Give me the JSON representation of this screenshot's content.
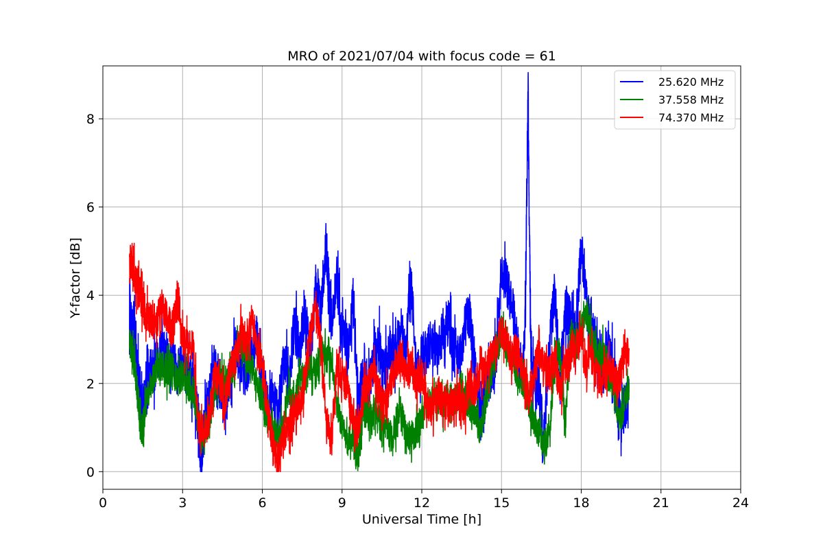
{
  "chart_data": {
    "type": "line",
    "title": "MRO of 2021/07/04 with focus code = 61",
    "xlabel": "Universal Time [h]",
    "ylabel": "Y-factor [dB]",
    "xlim": [
      0,
      24
    ],
    "ylim": [
      -0.4,
      9.2
    ],
    "xticks": [
      0,
      3,
      6,
      9,
      12,
      15,
      18,
      21,
      24
    ],
    "yticks": [
      0,
      2,
      4,
      6,
      8
    ],
    "grid": true,
    "legend_position": "top-right",
    "series": [
      {
        "name": "25.620 MHz",
        "color": "#0000ff",
        "x": [
          1.0,
          1.1,
          1.2,
          1.3,
          1.4,
          1.5,
          1.6,
          1.8,
          2.0,
          2.2,
          2.4,
          2.6,
          2.8,
          3.0,
          3.2,
          3.4,
          3.6,
          3.7,
          3.8,
          4.0,
          4.2,
          4.4,
          4.6,
          4.8,
          5.0,
          5.2,
          5.4,
          5.6,
          5.8,
          6.0,
          6.2,
          6.4,
          6.6,
          6.8,
          7.0,
          7.2,
          7.4,
          7.6,
          7.8,
          8.0,
          8.2,
          8.4,
          8.5,
          8.6,
          8.8,
          9.0,
          9.2,
          9.4,
          9.6,
          9.8,
          10.0,
          10.2,
          10.4,
          10.6,
          10.8,
          11.0,
          11.2,
          11.4,
          11.6,
          11.8,
          12.0,
          12.2,
          12.4,
          12.6,
          12.8,
          13.0,
          13.2,
          13.4,
          13.6,
          13.8,
          14.0,
          14.2,
          14.4,
          14.6,
          14.8,
          15.0,
          15.2,
          15.4,
          15.6,
          15.8,
          15.9,
          16.0,
          16.1,
          16.2,
          16.4,
          16.6,
          16.8,
          17.0,
          17.2,
          17.4,
          17.6,
          17.8,
          18.0,
          18.2,
          18.4,
          18.6,
          18.8,
          19.0,
          19.2,
          19.4,
          19.6,
          19.8
        ],
        "y": [
          3.6,
          3.2,
          3.0,
          2.4,
          1.6,
          1.3,
          1.8,
          2.2,
          2.4,
          2.8,
          2.5,
          2.6,
          2.3,
          2.5,
          2.2,
          2.0,
          1.2,
          0.05,
          1.0,
          1.6,
          2.4,
          1.8,
          1.5,
          2.3,
          2.8,
          2.4,
          2.2,
          2.6,
          3.0,
          2.2,
          1.6,
          1.8,
          1.2,
          2.6,
          2.0,
          3.4,
          2.8,
          3.6,
          2.6,
          4.2,
          3.6,
          5.2,
          4.2,
          3.4,
          4.4,
          3.2,
          2.6,
          3.8,
          1.6,
          2.2,
          1.9,
          2.6,
          2.8,
          2.2,
          2.8,
          2.6,
          3.2,
          2.8,
          4.4,
          2.2,
          2.6,
          2.8,
          3.0,
          2.6,
          3.2,
          3.4,
          2.8,
          2.5,
          3.2,
          3.6,
          2.4,
          1.2,
          1.8,
          2.2,
          2.6,
          4.6,
          4.2,
          3.8,
          2.8,
          2.2,
          3.6,
          8.7,
          2.8,
          2.2,
          1.8,
          0.8,
          2.8,
          4.2,
          2.0,
          3.6,
          3.4,
          3.2,
          5.2,
          3.8,
          3.0,
          2.6,
          2.2,
          2.8,
          2.4,
          1.2,
          1.4,
          1.8
        ]
      },
      {
        "name": "37.558 MHz",
        "color": "#008000",
        "x": [
          1.0,
          1.1,
          1.2,
          1.3,
          1.4,
          1.5,
          1.6,
          1.8,
          2.0,
          2.2,
          2.4,
          2.6,
          2.8,
          3.0,
          3.2,
          3.4,
          3.6,
          3.8,
          4.0,
          4.2,
          4.4,
          4.6,
          4.8,
          5.0,
          5.2,
          5.4,
          5.6,
          5.8,
          6.0,
          6.2,
          6.4,
          6.6,
          6.8,
          7.0,
          7.2,
          7.4,
          7.6,
          7.8,
          8.0,
          8.2,
          8.4,
          8.6,
          8.8,
          9.0,
          9.2,
          9.4,
          9.6,
          9.8,
          10.0,
          10.2,
          10.4,
          10.6,
          10.8,
          11.0,
          11.2,
          11.4,
          11.6,
          11.8,
          12.0,
          12.2,
          12.4,
          12.6,
          12.8,
          13.0,
          13.2,
          13.4,
          13.6,
          13.8,
          14.0,
          14.2,
          14.4,
          14.6,
          14.8,
          15.0,
          15.2,
          15.4,
          15.6,
          15.8,
          16.0,
          16.2,
          16.4,
          16.6,
          16.8,
          17.0,
          17.2,
          17.4,
          17.6,
          17.8,
          18.0,
          18.2,
          18.4,
          18.6,
          18.8,
          19.0,
          19.2,
          19.4,
          19.6,
          19.8
        ],
        "y": [
          2.9,
          2.7,
          2.4,
          1.8,
          1.1,
          0.9,
          1.6,
          2.0,
          2.3,
          2.5,
          2.2,
          2.4,
          2.0,
          2.2,
          2.0,
          1.8,
          1.2,
          0.6,
          1.2,
          1.8,
          2.2,
          1.9,
          2.2,
          2.6,
          3.0,
          2.6,
          2.4,
          2.0,
          1.6,
          1.2,
          0.9,
          0.8,
          1.0,
          1.8,
          1.4,
          2.2,
          2.0,
          2.4,
          2.2,
          2.8,
          2.6,
          2.4,
          1.6,
          1.0,
          0.6,
          0.8,
          0.2,
          1.4,
          1.2,
          1.4,
          1.2,
          1.0,
          0.8,
          1.0,
          1.4,
          0.9,
          0.8,
          0.9,
          1.2,
          1.5,
          1.6,
          1.8,
          1.5,
          1.8,
          1.6,
          1.7,
          1.6,
          1.5,
          1.3,
          0.9,
          1.6,
          2.2,
          2.6,
          3.2,
          2.8,
          2.6,
          2.2,
          2.0,
          1.6,
          1.2,
          0.9,
          0.6,
          0.8,
          2.6,
          2.8,
          1.0,
          3.2,
          2.8,
          3.2,
          3.6,
          3.0,
          2.6,
          2.8,
          2.2,
          2.0,
          1.2,
          1.4,
          2.0
        ]
      },
      {
        "name": "74.370 MHz",
        "color": "#ff0000",
        "x": [
          1.0,
          1.1,
          1.2,
          1.3,
          1.4,
          1.5,
          1.6,
          1.8,
          2.0,
          2.2,
          2.4,
          2.6,
          2.8,
          3.0,
          3.2,
          3.4,
          3.6,
          3.8,
          4.0,
          4.2,
          4.4,
          4.6,
          4.8,
          5.0,
          5.2,
          5.4,
          5.6,
          5.8,
          6.0,
          6.2,
          6.4,
          6.6,
          6.8,
          7.0,
          7.2,
          7.4,
          7.6,
          7.8,
          8.0,
          8.2,
          8.4,
          8.6,
          8.8,
          9.0,
          9.2,
          9.4,
          9.6,
          9.8,
          10.0,
          10.2,
          10.4,
          10.6,
          10.8,
          11.0,
          11.2,
          11.4,
          11.6,
          11.8,
          12.0,
          12.2,
          12.4,
          12.6,
          12.8,
          13.0,
          13.2,
          13.4,
          13.6,
          13.8,
          14.0,
          14.2,
          14.4,
          14.6,
          14.8,
          15.0,
          15.2,
          15.4,
          15.6,
          15.8,
          16.0,
          16.2,
          16.4,
          16.6,
          16.8,
          17.0,
          17.2,
          17.4,
          17.6,
          17.8,
          18.0,
          18.2,
          18.4,
          18.6,
          18.8,
          19.0,
          19.2,
          19.4,
          19.6,
          19.8
        ],
        "y": [
          4.8,
          4.7,
          4.4,
          4.2,
          4.0,
          3.8,
          3.6,
          3.4,
          3.3,
          3.8,
          3.5,
          3.2,
          3.8,
          3.0,
          2.8,
          2.9,
          1.0,
          0.9,
          1.2,
          2.2,
          2.0,
          1.6,
          2.4,
          2.6,
          3.2,
          2.8,
          3.4,
          2.8,
          2.4,
          1.4,
          0.6,
          0.3,
          0.8,
          1.0,
          1.2,
          1.6,
          2.0,
          3.2,
          3.6,
          3.0,
          1.2,
          0.6,
          2.4,
          2.2,
          1.8,
          1.2,
          0.9,
          1.8,
          2.0,
          2.2,
          1.8,
          1.4,
          2.0,
          2.4,
          2.6,
          2.2,
          2.4,
          2.0,
          2.2,
          1.6,
          1.4,
          1.8,
          1.6,
          1.4,
          1.6,
          1.8,
          1.4,
          2.0,
          1.8,
          2.4,
          2.2,
          2.6,
          2.8,
          3.2,
          3.0,
          2.6,
          2.8,
          2.2,
          1.8,
          2.0,
          2.8,
          2.4,
          2.2,
          2.6,
          1.8,
          2.4,
          2.6,
          2.8,
          3.0,
          2.4,
          2.6,
          2.2,
          2.0,
          2.4,
          2.2,
          2.0,
          2.6,
          2.8
        ]
      }
    ]
  }
}
